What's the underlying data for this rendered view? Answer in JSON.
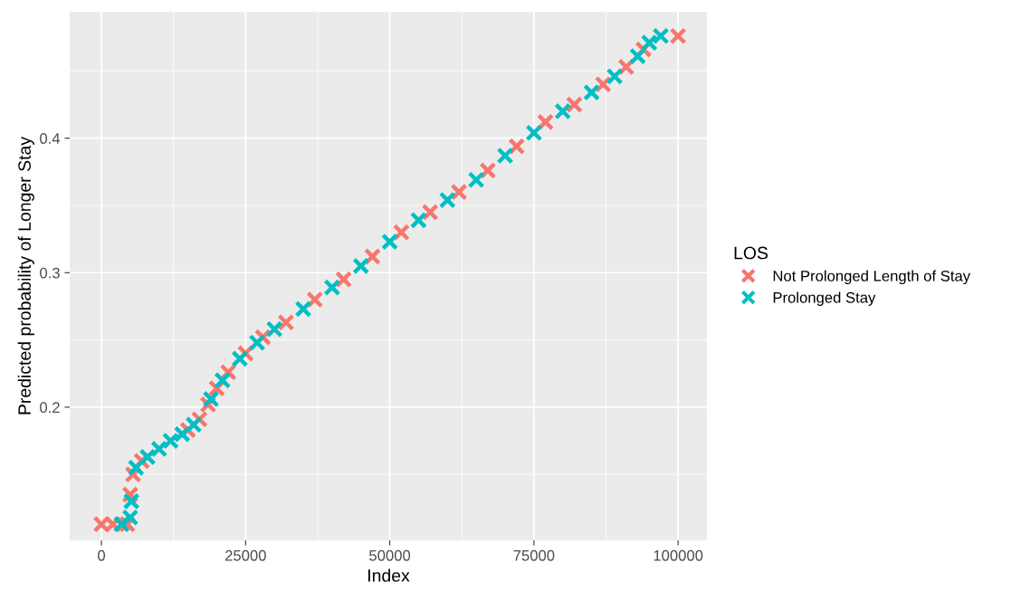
{
  "chart_data": {
    "type": "scatter",
    "xlabel": "Index",
    "ylabel": "Predicted probability of Longer Stay",
    "legend_title": "LOS",
    "legend": "right",
    "grid": true,
    "marker": "cross",
    "xlim": [
      -5500,
      105000
    ],
    "ylim": [
      0.101,
      0.494
    ],
    "xticks": [
      0,
      25000,
      50000,
      75000,
      100000
    ],
    "yticks": [
      0.2,
      0.3,
      0.4
    ],
    "series": [
      {
        "name": "Not Prolonged Length of Stay",
        "color": "#f8766d",
        "x": [
          0,
          2000,
          4500,
          5000,
          5500,
          7000,
          15000,
          17000,
          18500,
          20000,
          22000,
          25000,
          28000,
          32000,
          37000,
          42000,
          47000,
          52000,
          57000,
          62000,
          67000,
          72000,
          77000,
          82000,
          87000,
          91000,
          94000,
          100000
        ],
        "values": [
          0.113,
          0.113,
          0.113,
          0.135,
          0.15,
          0.16,
          0.183,
          0.191,
          0.202,
          0.214,
          0.226,
          0.24,
          0.252,
          0.263,
          0.28,
          0.295,
          0.312,
          0.33,
          0.345,
          0.36,
          0.376,
          0.394,
          0.412,
          0.425,
          0.44,
          0.453,
          0.466,
          0.476
        ]
      },
      {
        "name": "Prolonged Stay",
        "color": "#00bfc4",
        "x": [
          3500,
          5000,
          5200,
          6000,
          8000,
          10000,
          12000,
          14000,
          16000,
          19000,
          21000,
          24000,
          27000,
          30000,
          35000,
          40000,
          45000,
          50000,
          55000,
          60000,
          65000,
          70000,
          75000,
          80000,
          85000,
          89000,
          93000,
          95000,
          97000
        ],
        "values": [
          0.113,
          0.118,
          0.13,
          0.155,
          0.163,
          0.169,
          0.175,
          0.18,
          0.187,
          0.206,
          0.22,
          0.236,
          0.248,
          0.258,
          0.273,
          0.289,
          0.305,
          0.323,
          0.339,
          0.354,
          0.369,
          0.387,
          0.404,
          0.42,
          0.434,
          0.446,
          0.461,
          0.471,
          0.476
        ]
      }
    ]
  }
}
